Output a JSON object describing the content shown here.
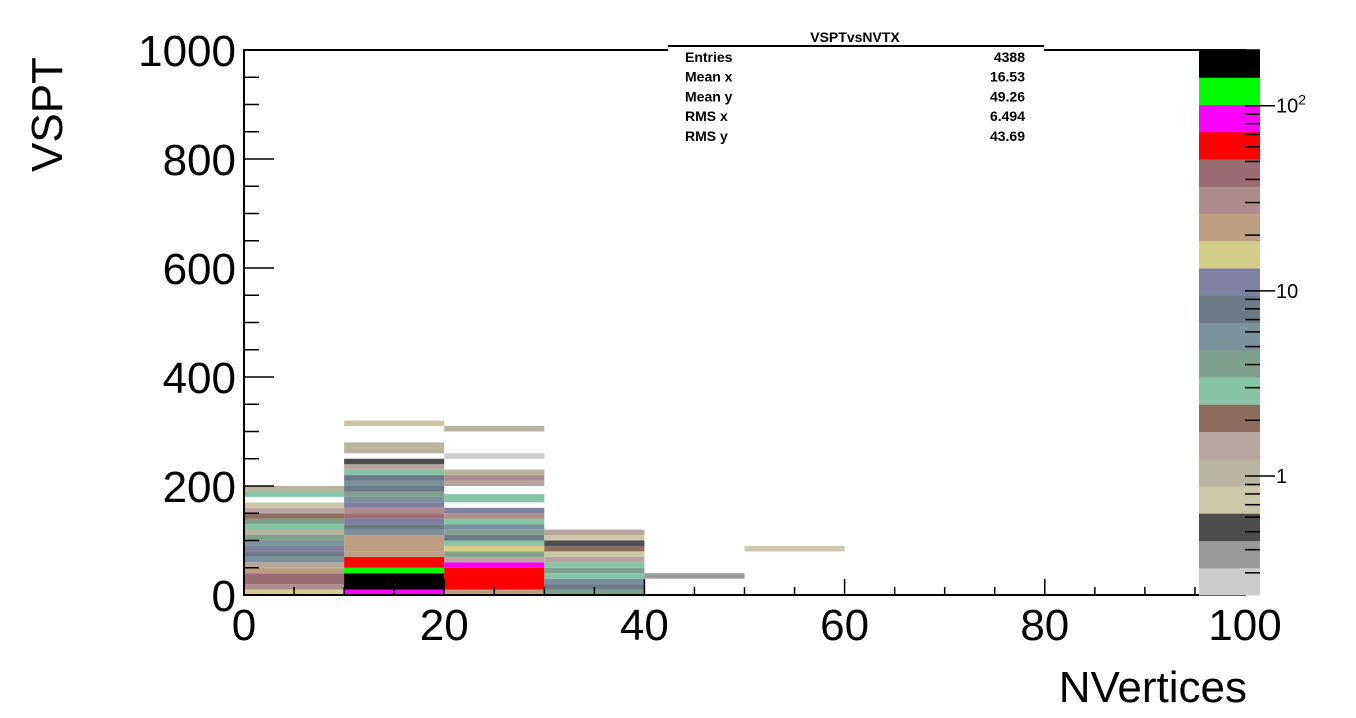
{
  "chart_data": {
    "type": "heatmap",
    "xlabel": "NVertices",
    "ylabel": "VSPT",
    "xlim": [
      0,
      100
    ],
    "ylim": [
      0,
      1000
    ],
    "x_ticks": [
      "0",
      "20",
      "40",
      "60",
      "80",
      "100"
    ],
    "y_ticks": [
      "0",
      "200",
      "400",
      "600",
      "800",
      "1000"
    ],
    "z_scale": "log",
    "z_labels": [
      {
        "value": 1,
        "text": "1"
      },
      {
        "value": 10,
        "text": "10"
      },
      {
        "value": 100,
        "base": "10",
        "exp": "2"
      }
    ],
    "palette": [
      "#cccccc",
      "#999999",
      "#4d4d4d",
      "#ccc7a8",
      "#b8b4a0",
      "#b8a59f",
      "#8c6d5e",
      "#87c4a6",
      "#7fa08c",
      "#7a929a",
      "#6c7a85",
      "#7f7f9f",
      "#d4ce8a",
      "#bc9e82",
      "#ad8c8c",
      "#9a6d75",
      "#ff0000",
      "#ff00ff",
      "#00ff00",
      "#000000"
    ],
    "bins": [
      {
        "x0": 0,
        "x1": 10,
        "cells": [
          [
            0,
            10,
            "#d4ce8a"
          ],
          [
            10,
            20,
            "#ad8c8c"
          ],
          [
            20,
            40,
            "#9a6d75"
          ],
          [
            40,
            50,
            "#bc9e82"
          ],
          [
            50,
            60,
            "#b8a59f"
          ],
          [
            60,
            70,
            "#7a929a"
          ],
          [
            70,
            80,
            "#6c7a85"
          ],
          [
            80,
            90,
            "#7f7f9f"
          ],
          [
            90,
            100,
            "#7a929a"
          ],
          [
            100,
            110,
            "#7fa08c"
          ],
          [
            110,
            120,
            "#b8b4a0"
          ],
          [
            120,
            130,
            "#87c4a6"
          ],
          [
            130,
            140,
            "#7fa08c"
          ],
          [
            140,
            150,
            "#8c6d5e"
          ],
          [
            150,
            160,
            "#b8a59f"
          ],
          [
            160,
            170,
            "#ccc7a8"
          ],
          [
            170,
            180,
            "#ffffff"
          ],
          [
            180,
            190,
            "#87c4a6"
          ],
          [
            190,
            200,
            "#b8b4a0"
          ]
        ]
      },
      {
        "x0": 10,
        "x1": 20,
        "cells": [
          [
            0,
            10,
            "#ff00ff"
          ],
          [
            10,
            40,
            "#000000"
          ],
          [
            40,
            50,
            "#00ff00"
          ],
          [
            50,
            70,
            "#ff0000"
          ],
          [
            70,
            80,
            "#bc9e82"
          ],
          [
            80,
            110,
            "#bc9e82"
          ],
          [
            110,
            120,
            "#7a929a"
          ],
          [
            120,
            130,
            "#6c7a85"
          ],
          [
            130,
            140,
            "#7f7f9f"
          ],
          [
            140,
            150,
            "#9a6d75"
          ],
          [
            150,
            160,
            "#ad8c8c"
          ],
          [
            160,
            170,
            "#7f7f9f"
          ],
          [
            170,
            180,
            "#7a929a"
          ],
          [
            180,
            190,
            "#7fa08c"
          ],
          [
            190,
            200,
            "#6c7a85"
          ],
          [
            200,
            210,
            "#7a929a"
          ],
          [
            210,
            220,
            "#6c7a85"
          ],
          [
            220,
            230,
            "#87c4a6"
          ],
          [
            230,
            240,
            "#b8a59f"
          ],
          [
            240,
            250,
            "#4d4d4d"
          ],
          [
            260,
            270,
            "#b8b4a0"
          ],
          [
            270,
            280,
            "#b8b4a0"
          ],
          [
            310,
            320,
            "#ccc7a8"
          ]
        ]
      },
      {
        "x0": 20,
        "x1": 30,
        "cells": [
          [
            0,
            10,
            "#bc9e82"
          ],
          [
            10,
            50,
            "#ff0000"
          ],
          [
            50,
            60,
            "#ff00ff"
          ],
          [
            60,
            70,
            "#b8a59f"
          ],
          [
            70,
            80,
            "#7fa08c"
          ],
          [
            80,
            90,
            "#d4ce8a"
          ],
          [
            90,
            100,
            "#87c4a6"
          ],
          [
            100,
            110,
            "#6c7a85"
          ],
          [
            110,
            120,
            "#7fa08c"
          ],
          [
            120,
            130,
            "#7a929a"
          ],
          [
            130,
            140,
            "#87c4a6"
          ],
          [
            140,
            150,
            "#ad8c8c"
          ],
          [
            150,
            160,
            "#7f7f9f"
          ],
          [
            170,
            185,
            "#87c4a6"
          ],
          [
            200,
            210,
            "#b8a59f"
          ],
          [
            210,
            220,
            "#ad8c8c"
          ],
          [
            220,
            230,
            "#b8b4a0"
          ],
          [
            250,
            260,
            "#cccccc"
          ],
          [
            300,
            310,
            "#b8b4a0"
          ]
        ]
      },
      {
        "x0": 30,
        "x1": 40,
        "cells": [
          [
            0,
            10,
            "#7fa08c"
          ],
          [
            10,
            20,
            "#6c7a85"
          ],
          [
            20,
            30,
            "#7a929a"
          ],
          [
            30,
            40,
            "#87c4a6"
          ],
          [
            40,
            50,
            "#7fa08c"
          ],
          [
            50,
            60,
            "#87c4a6"
          ],
          [
            60,
            70,
            "#b8a59f"
          ],
          [
            70,
            80,
            "#ccc7a8"
          ],
          [
            80,
            90,
            "#8c6d5e"
          ],
          [
            90,
            100,
            "#4d4d4d"
          ],
          [
            100,
            110,
            "#ccc7a8"
          ],
          [
            110,
            120,
            "#b8a59f"
          ]
        ]
      },
      {
        "x0": 40,
        "x1": 50,
        "cells": [
          [
            30,
            40,
            "#999999"
          ]
        ]
      },
      {
        "x0": 50,
        "x1": 60,
        "cells": [
          [
            80,
            90,
            "#ccc7a8"
          ]
        ]
      }
    ],
    "stats": {
      "title": "VSPTvsNVTX",
      "rows": [
        {
          "label": "Entries",
          "value": "4388"
        },
        {
          "label": "Mean x",
          "value": "16.53"
        },
        {
          "label": "Mean y",
          "value": "49.26"
        },
        {
          "label": "RMS x",
          "value": "6.494"
        },
        {
          "label": "RMS y",
          "value": "43.69"
        }
      ]
    }
  }
}
